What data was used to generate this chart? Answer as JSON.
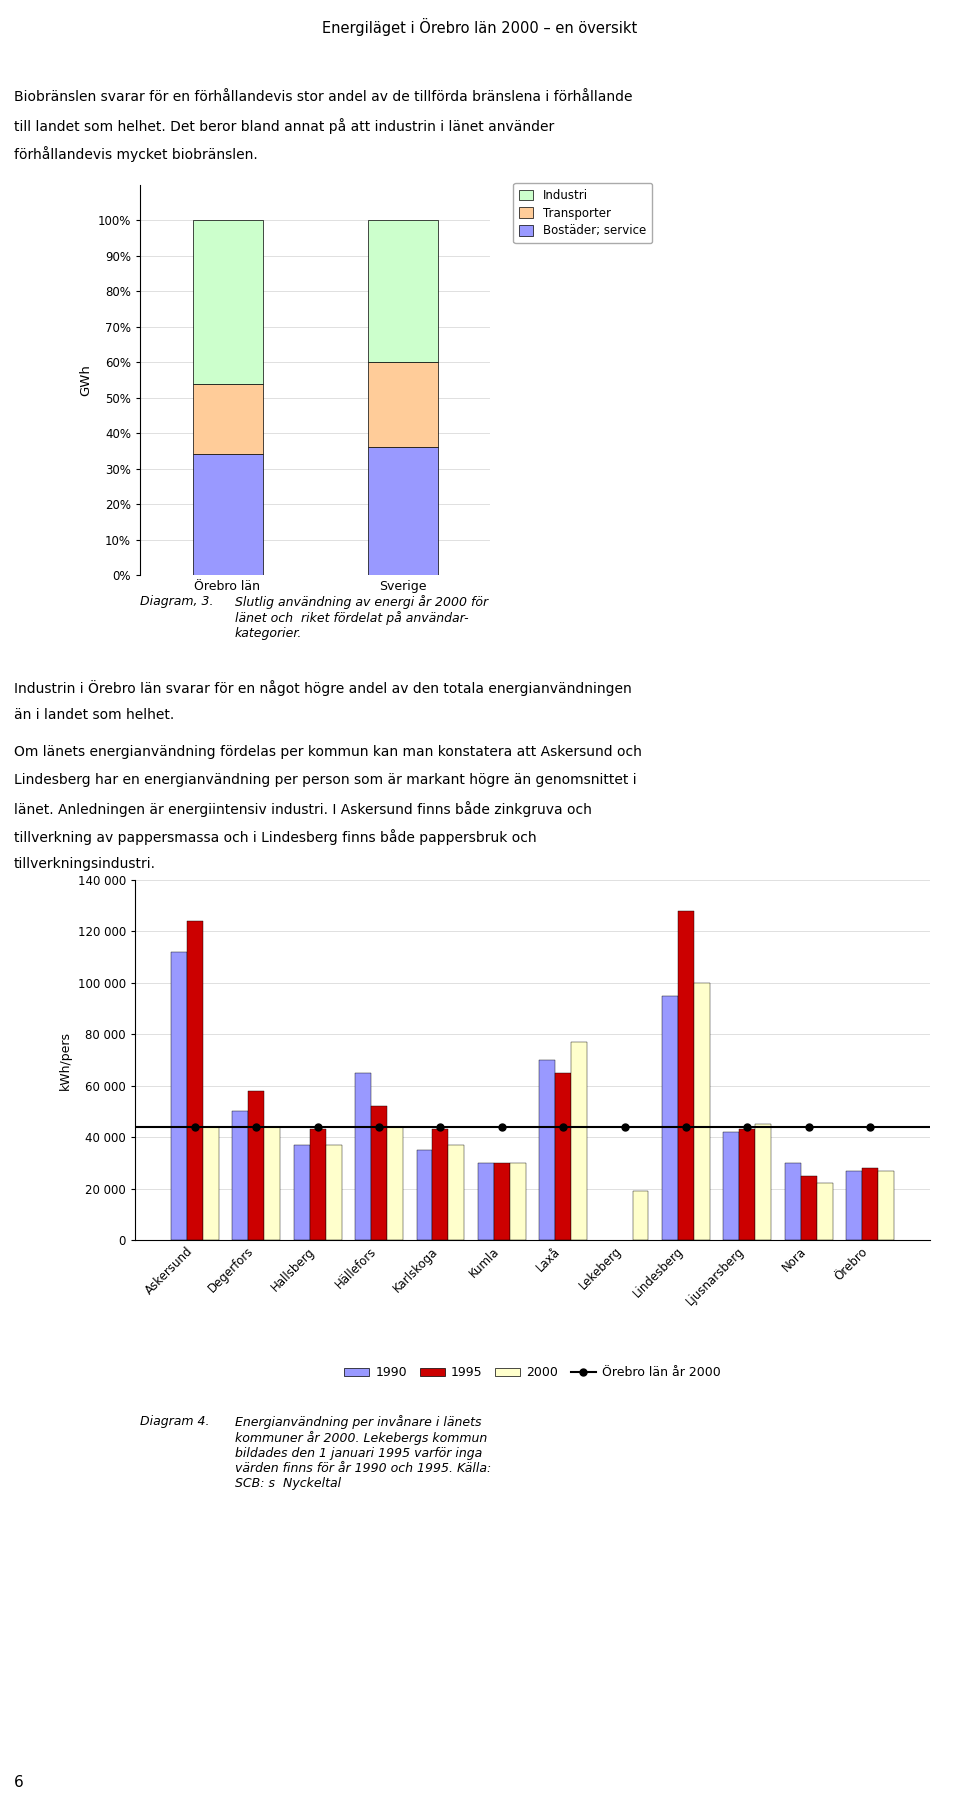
{
  "page_title": "Energiläget i Örebro län 2000 – en översikt",
  "page_number": "6",
  "text1_line1": "Biobränslen svarar för en förhållandevis stor andel av de tillförda bränslena i förhållande",
  "text1_line2": "till landet som helhet. Det beror bland annat på att industrin i länet använder",
  "text1_line3": "förhållandevis mycket biobränslen.",
  "chart1_categories": [
    "Örebro län",
    "Sverige"
  ],
  "chart1_bostader": [
    34,
    36
  ],
  "chart1_transporter": [
    20,
    24
  ],
  "chart1_industri": [
    46,
    40
  ],
  "chart1_ylabel": "GWh",
  "chart1_color_bostader": "#9999ff",
  "chart1_color_transporter": "#ffcc99",
  "chart1_color_industri": "#ccffcc",
  "chart1_legend_bostader": "Bostäder; service",
  "chart1_legend_transporter": "Transporter",
  "chart1_legend_industri": "Industri",
  "diagram3_label": "Diagram, 3.",
  "diagram3_text": "Slutlig användning av energi år 2000 för\nlänet och  riket fördelat på användar-\nkategorier.",
  "text2_line1": "Industrin i Örebro län svarar för en något högre andel av den totala energianvändningen",
  "text2_line2": "än i landet som helhet.",
  "text3_line1": "Om länets energianvändning fördelas per kommun kan man konstatera att Askersund och",
  "text3_line2": "Lindesberg har en energianvändning per person som är markant högre än genomsnittet i",
  "text3_line3": "länet. Anledningen är energiintensiv industri. I Askersund finns både zinkgruva och",
  "text3_line4": "tillverkning av pappersmassa och i Lindesberg finns både pappersbruk och",
  "text3_line5": "tillverkningsindustri.",
  "chart2_municipalities": [
    "Askersund",
    "Degerfors",
    "Hallsberg",
    "Hällefors",
    "Karlskoga",
    "Kumla",
    "Laxå",
    "Lekeberg",
    "Lindesberg",
    "Ljusnarsberg",
    "Nora",
    "Örebro"
  ],
  "chart2_1990": [
    112000,
    50000,
    37000,
    65000,
    35000,
    30000,
    70000,
    null,
    95000,
    42000,
    30000,
    27000
  ],
  "chart2_1995": [
    124000,
    58000,
    43000,
    52000,
    43000,
    30000,
    65000,
    null,
    128000,
    43000,
    25000,
    28000
  ],
  "chart2_2000": [
    44000,
    44000,
    37000,
    44000,
    37000,
    30000,
    77000,
    19000,
    100000,
    45000,
    22000,
    27000
  ],
  "chart2_orebro_avg": 44000,
  "chart2_ylabel": "kWh/pers",
  "chart2_ylim": [
    0,
    140000
  ],
  "chart2_yticks": [
    0,
    20000,
    40000,
    60000,
    80000,
    100000,
    120000,
    140000
  ],
  "chart2_color_1990": "#9999ff",
  "chart2_color_1995": "#cc0000",
  "chart2_color_2000": "#ffffcc",
  "chart2_legend_1990": "1990",
  "chart2_legend_1995": "1995",
  "chart2_legend_2000": "2000",
  "chart2_legend_avg": "Örebro län år 2000",
  "diagram4_label": "Diagram 4.",
  "diagram4_text": "Energianvändning per invånare i länets\nkommuner år 2000. Lekebergs kommun\nbildades den 1 januari 1995 varför inga\nvärden finns för år 1990 och 1995. Källa:\nSCB: s  Nyckeltal"
}
